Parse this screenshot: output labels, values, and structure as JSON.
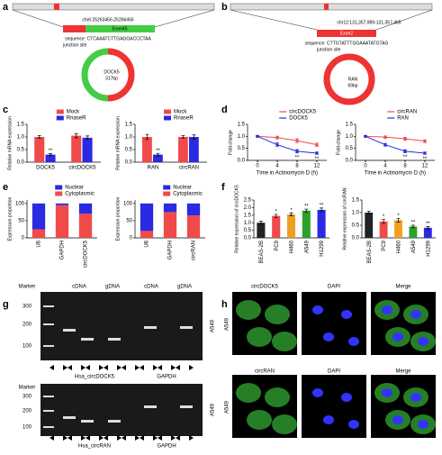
{
  "panel_labels": [
    "a",
    "b",
    "c",
    "d",
    "e",
    "f",
    "g",
    "h"
  ],
  "diagram_a": {
    "coordinates": "chr6:25263456-25266456",
    "exon": "Exon45",
    "sequence": "sequence: CTCAAATCTTGAGGACCCTAA",
    "junction": "junction site",
    "circle_label": "DOCK5",
    "length": "317bp"
  },
  "diagram_b": {
    "coordinates": "chr12:131,357,989-131,357,465",
    "exon": "Exon2",
    "sequence": "sequence: CTTGTATTTGGAAATATGTAG",
    "junction": "junction site",
    "circle_label": "RAN",
    "length": "69bp"
  },
  "chart_data": [
    {
      "type": "bar",
      "ylabel": "Relative mRNA expression",
      "categories": [
        "DOCK5",
        "circDOCK5"
      ],
      "series": [
        {
          "name": "Mock",
          "color": "#f04a4a",
          "values": [
            1.0,
            1.05
          ],
          "errors": [
            0.06,
            0.08
          ]
        },
        {
          "name": "RnaseR",
          "color": "#2a2ae0",
          "values": [
            0.3,
            0.97
          ],
          "errors": [
            0.04,
            0.07
          ],
          "significance": [
            "**",
            null
          ]
        }
      ],
      "ylim": [
        0,
        1.5
      ],
      "yticks": [
        {
          "value": 0,
          "label": "0.0"
        },
        0.5,
        {
          "value": 1,
          "label": "1.0"
        },
        1.5
      ]
    },
    {
      "type": "bar",
      "ylabel": "Relative mRNA expression",
      "categories": [
        "RAN",
        "circRAN"
      ],
      "series": [
        {
          "name": "Mock",
          "color": "#f04a4a",
          "values": [
            1.0,
            1.0
          ],
          "errors": [
            0.1,
            0.06
          ]
        },
        {
          "name": "RnaseR",
          "color": "#2a2ae0",
          "values": [
            0.3,
            1.0
          ],
          "errors": [
            0.05,
            0.08
          ],
          "significance": [
            "**",
            null
          ]
        }
      ],
      "ylim": [
        0,
        1.5
      ],
      "yticks": [
        {
          "value": 0,
          "label": "0.0"
        },
        0.5,
        {
          "value": 1,
          "label": "1.0"
        },
        1.5
      ]
    },
    {
      "type": "line",
      "xlabel": "Time in Actinomycin D (h)",
      "ylabel": "Fold-change",
      "x": [
        0,
        4,
        8,
        12
      ],
      "xlim": [
        -2,
        14
      ],
      "xticks": [
        0,
        4,
        8,
        12
      ],
      "series": [
        {
          "name": "circDOCK5",
          "color": "#f04a4a",
          "values": [
            1.0,
            0.95,
            0.82,
            0.65
          ],
          "errors": [
            0.03,
            0.06,
            0.08,
            0.07
          ]
        },
        {
          "name": "DOCK5",
          "color": "#2a2ae0",
          "values": [
            1.0,
            0.65,
            0.38,
            0.3
          ],
          "errors": [
            0.03,
            0.08,
            0.07,
            0.05
          ],
          "significance": [
            null,
            null,
            "**",
            "**"
          ]
        }
      ],
      "ylim": [
        0,
        1.5
      ],
      "yticks": [
        {
          "value": 0,
          "label": "0.0"
        },
        0.5,
        {
          "value": 1,
          "label": "1.0"
        },
        1.5
      ]
    },
    {
      "type": "line",
      "xlabel": "Time in Actinomycin D (h)",
      "ylabel": "Fold-change",
      "x": [
        0,
        4,
        8,
        12
      ],
      "xlim": [
        -2,
        14
      ],
      "xticks": [
        0,
        4,
        8,
        12
      ],
      "series": [
        {
          "name": "circRAN",
          "color": "#f04a4a",
          "values": [
            1.0,
            0.97,
            0.9,
            0.8
          ],
          "errors": [
            0.03,
            0.05,
            0.06,
            0.06
          ]
        },
        {
          "name": "RAN",
          "color": "#2a2ae0",
          "values": [
            1.0,
            0.65,
            0.38,
            0.3
          ],
          "errors": [
            0.03,
            0.06,
            0.06,
            0.05
          ],
          "significance": [
            null,
            null,
            "**",
            "**"
          ]
        }
      ],
      "ylim": [
        0,
        1.5
      ],
      "yticks": [
        {
          "value": 0,
          "label": "0.0"
        },
        0.5,
        {
          "value": 1,
          "label": "1.0"
        },
        1.5
      ]
    },
    {
      "type": "stacked_bar",
      "ylabel": "Expression proportion",
      "categories": [
        "U6",
        "GAPDH",
        "circDOCK5"
      ],
      "series": [
        {
          "name": "Nuclear",
          "color": "#2a2ae0",
          "values": [
            75,
            5,
            30
          ]
        },
        {
          "name": "Cytoplasmic",
          "color": "#f04a4a",
          "values": [
            25,
            95,
            70
          ]
        }
      ],
      "ylim": [
        0,
        110
      ],
      "yticks": [
        0,
        50,
        100
      ]
    },
    {
      "type": "stacked_bar",
      "ylabel": "Expression proportion",
      "categories": [
        "U6",
        "GAPDH",
        "circRAN"
      ],
      "series": [
        {
          "name": "Nuclear",
          "color": "#2a2ae0",
          "values": [
            80,
            25,
            35
          ]
        },
        {
          "name": "Cytoplasmic",
          "color": "#f04a4a",
          "values": [
            20,
            75,
            65
          ]
        }
      ],
      "ylim": [
        0,
        110
      ],
      "yticks": [
        0,
        50,
        100
      ]
    },
    {
      "type": "bar",
      "ylabel": "Relative expression of circDOCK5",
      "categories": [
        "BEAS-2B",
        "PC9",
        "H460",
        "A549",
        "H1299"
      ],
      "values": [
        1.0,
        1.45,
        1.55,
        1.8,
        1.85
      ],
      "errors": [
        0.1,
        0.1,
        0.1,
        0.1,
        0.12
      ],
      "significance": [
        null,
        "*",
        "*",
        "**",
        "**"
      ],
      "colors": [
        "#222222",
        "#f04a4a",
        "#f0a020",
        "#2ca02c",
        "#2a2ae0"
      ],
      "ylim": [
        0,
        2.5
      ],
      "yticks": [
        {
          "value": 0,
          "label": "0.0"
        },
        0.5,
        {
          "value": 1,
          "label": "1.0"
        },
        1.5,
        {
          "value": 2,
          "label": "2.0"
        },
        2.5
      ]
    },
    {
      "type": "bar",
      "ylabel": "Relative expression of circRAN",
      "categories": [
        "BEAS-2B",
        "PC9",
        "H460",
        "A549",
        "H1299"
      ],
      "values": [
        1.0,
        0.65,
        0.7,
        0.45,
        0.4
      ],
      "errors": [
        0.06,
        0.08,
        0.07,
        0.05,
        0.05
      ],
      "significance": [
        null,
        "*",
        "*",
        "**",
        "**"
      ],
      "colors": [
        "#222222",
        "#f04a4a",
        "#f0a020",
        "#2ca02c",
        "#2a2ae0"
      ],
      "ylim": [
        0,
        1.5
      ],
      "yticks": [
        {
          "value": 0,
          "label": "0.0"
        },
        0.5,
        {
          "value": 1,
          "label": "1.0"
        },
        1.5
      ]
    }
  ],
  "gel": {
    "marker": "Marker",
    "columns": [
      "cDNA",
      "gDNA",
      "cDNA",
      "gDNA"
    ],
    "ladder": [
      "300",
      "200",
      "100"
    ],
    "top_targets": [
      "Hsa_circDOCK5",
      "GAPDH"
    ],
    "bottom_targets": [
      "Hsa_circRAN",
      "GAPDH"
    ],
    "cell": "A549"
  },
  "microscopy": {
    "rows": [
      [
        "circDOCK5",
        "DAPI",
        "Merge"
      ],
      [
        "circRAN",
        "DAPI",
        "Merge"
      ]
    ],
    "cell": "A549"
  }
}
